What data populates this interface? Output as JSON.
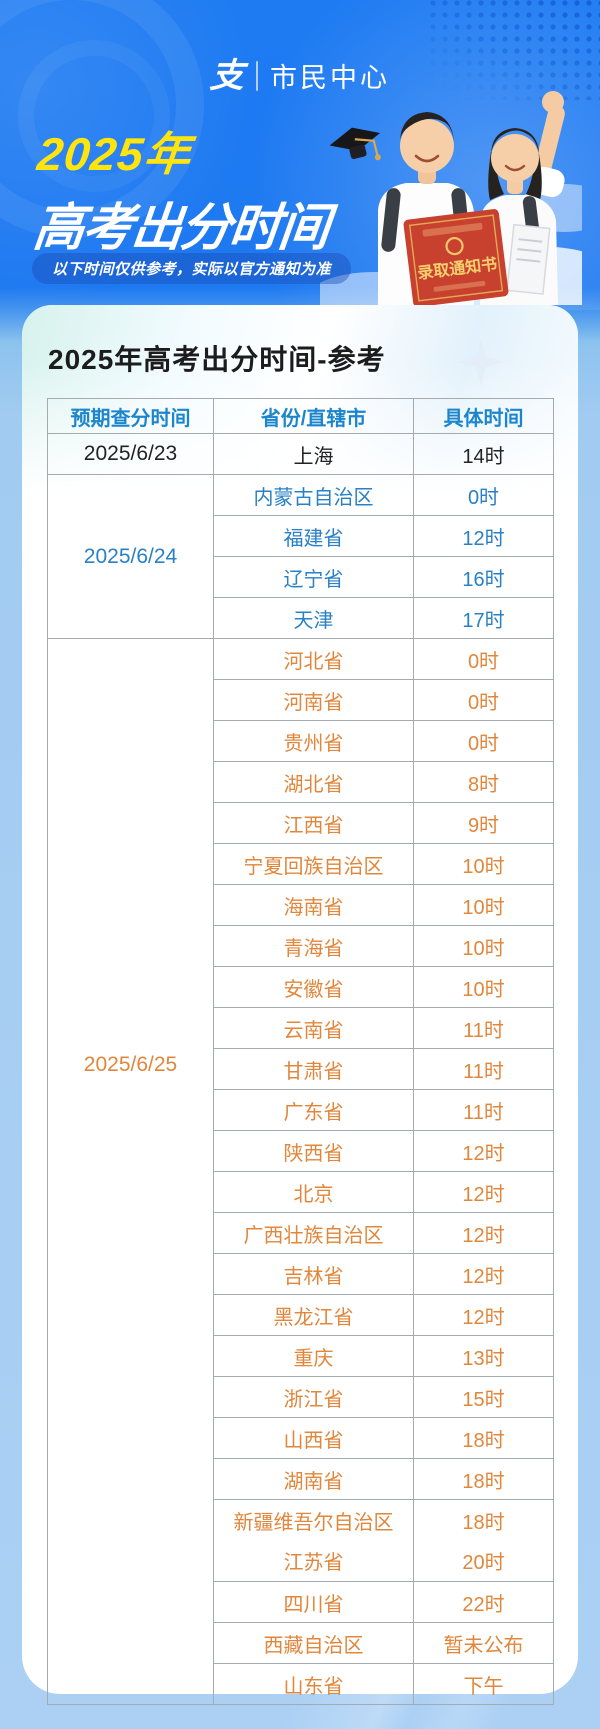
{
  "brand": {
    "logo_glyph": "支",
    "name": "市民中心"
  },
  "hero": {
    "title_year": "2025年",
    "title_main": "高考出分时间",
    "disclaimer": "以下时间仅供参考，实际以官方通知为准",
    "diploma_label": "录取通知书"
  },
  "card": {
    "title": "2025年高考出分时间-参考"
  },
  "table": {
    "headers": [
      "预期查分时间",
      "省份/直辖市",
      "具体时间"
    ],
    "groups": [
      {
        "date": "2025/6/23",
        "theme": "dark",
        "rows": [
          {
            "province": "上海",
            "time": "14时"
          }
        ]
      },
      {
        "date": "2025/6/24",
        "theme": "blue",
        "rows": [
          {
            "province": "内蒙古自治区",
            "time": "0时"
          },
          {
            "province": "福建省",
            "time": "12时"
          },
          {
            "province": "辽宁省",
            "time": "16时"
          },
          {
            "province": "天津",
            "time": "17时"
          }
        ]
      },
      {
        "date": "2025/6/25",
        "theme": "orange",
        "date_offset_pct": 40,
        "rows": [
          {
            "province": "河北省",
            "time": "0时"
          },
          {
            "province": "河南省",
            "time": "0时"
          },
          {
            "province": "贵州省",
            "time": "0时"
          },
          {
            "province": "湖北省",
            "time": "8时"
          },
          {
            "province": "江西省",
            "time": "9时"
          },
          {
            "province": "宁夏回族自治区",
            "time": "10时"
          },
          {
            "province": "海南省",
            "time": "10时"
          },
          {
            "province": "青海省",
            "time": "10时"
          },
          {
            "province": "安徽省",
            "time": "10时"
          },
          {
            "province": "云南省",
            "time": "11时"
          },
          {
            "province": "甘肃省",
            "time": "11时"
          },
          {
            "province": "广东省",
            "time": "11时"
          },
          {
            "province": "陕西省",
            "time": "12时"
          },
          {
            "province": "北京",
            "time": "12时"
          },
          {
            "province": "广西壮族自治区",
            "time": "12时"
          },
          {
            "province": "吉林省",
            "time": "12时"
          },
          {
            "province": "黑龙江省",
            "time": "12时"
          },
          {
            "province": "重庆",
            "time": "13时"
          },
          {
            "province": "浙江省",
            "time": "15时"
          },
          {
            "province": "山西省",
            "time": "18时"
          },
          {
            "province": "湖南省",
            "time": "18时"
          },
          {
            "merged": [
              {
                "province": "新疆维吾尔自治区",
                "time": "18时"
              },
              {
                "province": "江苏省",
                "time": "20时"
              }
            ]
          },
          {
            "province": "四川省",
            "time": "22时"
          },
          {
            "province": "西藏自治区",
            "time": "暂未公布"
          },
          {
            "province": "山东省",
            "time": "下午"
          }
        ]
      }
    ]
  },
  "colors": {
    "theme_dark": "#232323",
    "theme_blue": "#2a80c5",
    "theme_orange": "#e0873c",
    "header_text": "#1c86cd",
    "title_yellow": "#ffe40e",
    "hero_blue": "#1e7bf2",
    "page_light_blue": "#a8cef3",
    "diploma_red": "#c8402e",
    "diploma_gold": "#f7cf6f"
  }
}
